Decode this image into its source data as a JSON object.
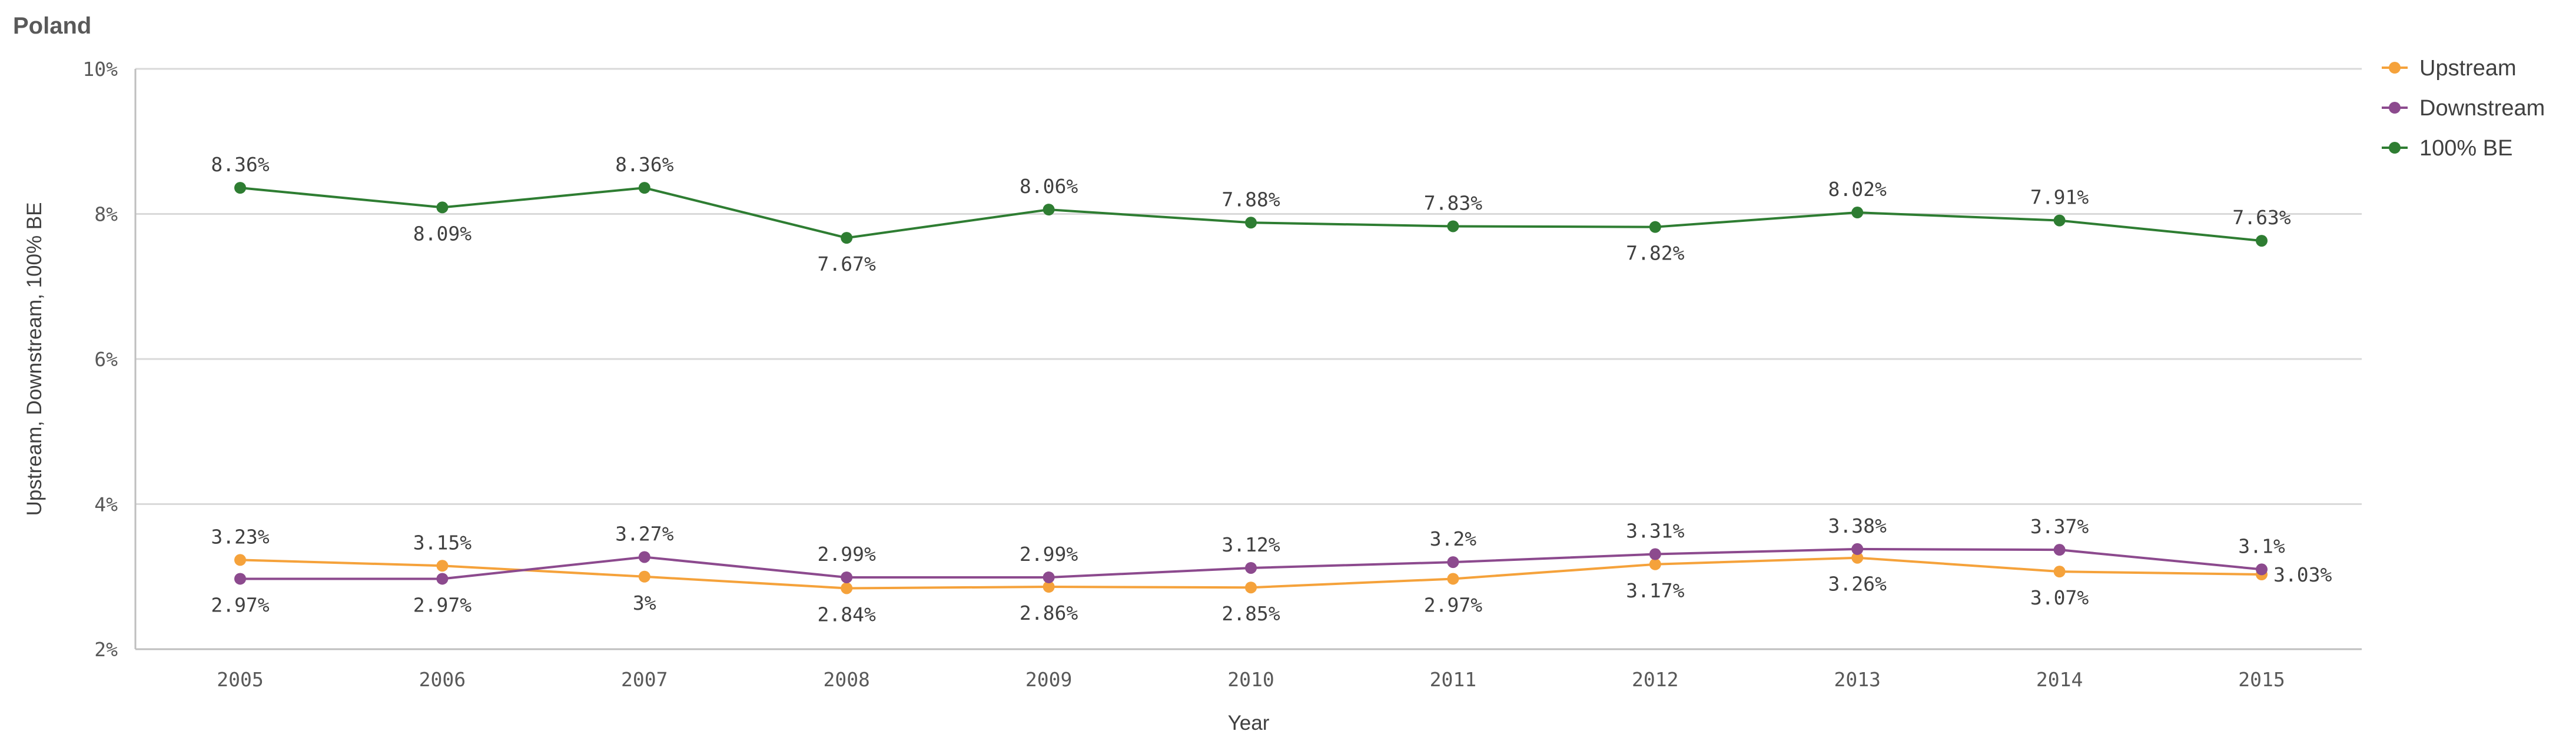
{
  "title": "Poland",
  "chart_data": {
    "type": "line",
    "xlabel": "Year",
    "ylabel": "Upstream, Downstream, 100% BE",
    "categories": [
      "2005",
      "2006",
      "2007",
      "2008",
      "2009",
      "2010",
      "2011",
      "2012",
      "2013",
      "2014",
      "2015"
    ],
    "ylim": [
      2,
      10
    ],
    "yticks": [
      2,
      4,
      6,
      8,
      10
    ],
    "ytick_labels": [
      "2%",
      "4%",
      "6%",
      "8%",
      "10%"
    ],
    "grid": true,
    "legend_position": "top-right",
    "series": [
      {
        "name": "Upstream",
        "color": "#f5a23b",
        "values": [
          3.23,
          3.15,
          3,
          2.84,
          2.86,
          2.85,
          2.97,
          3.17,
          3.26,
          3.07,
          3.03
        ],
        "labels": [
          "3.23%",
          "3.15%",
          "3%",
          "2.84%",
          "2.86%",
          "2.85%",
          "2.97%",
          "3.17%",
          "3.26%",
          "3.07%",
          "3.03%"
        ],
        "label_side": [
          "above",
          "above",
          "below",
          "below",
          "below",
          "below",
          "below",
          "below",
          "below",
          "below",
          "right"
        ]
      },
      {
        "name": "Downstream",
        "color": "#8c4a8e",
        "values": [
          2.97,
          2.97,
          3.27,
          2.99,
          2.99,
          3.12,
          3.2,
          3.31,
          3.38,
          3.37,
          3.1
        ],
        "labels": [
          "2.97%",
          "2.97%",
          "3.27%",
          "2.99%",
          "2.99%",
          "3.12%",
          "3.2%",
          "3.31%",
          "3.38%",
          "3.37%",
          "3.1%"
        ],
        "label_side": [
          "below",
          "below",
          "above",
          "above",
          "above",
          "above",
          "above",
          "above",
          "above",
          "above",
          "above"
        ]
      },
      {
        "name": "100% BE",
        "color": "#2e7d32",
        "values": [
          8.36,
          8.09,
          8.36,
          7.67,
          8.06,
          7.88,
          7.83,
          7.82,
          8.02,
          7.91,
          7.63
        ],
        "labels": [
          "8.36%",
          "8.09%",
          "8.36%",
          "7.67%",
          "8.06%",
          "7.88%",
          "7.83%",
          "7.82%",
          "8.02%",
          "7.91%",
          "7.63%"
        ],
        "label_side": [
          "above",
          "below",
          "above",
          "below",
          "above",
          "above",
          "above",
          "below",
          "above",
          "above",
          "above"
        ]
      }
    ]
  }
}
